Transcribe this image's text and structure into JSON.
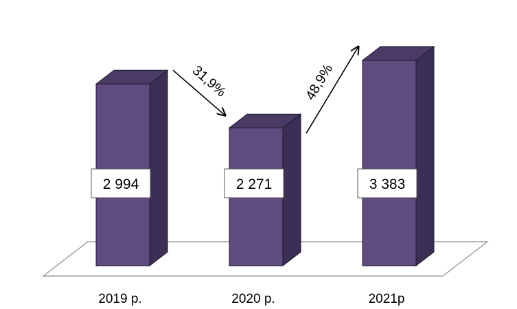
{
  "chart_data": {
    "type": "bar",
    "categories": [
      "2019 р.",
      "2020 р.",
      "2021р"
    ],
    "values": [
      2994,
      2271,
      3383
    ],
    "value_labels": [
      "2 994",
      "2 271",
      "3 383"
    ],
    "ylim": [
      0,
      3800
    ],
    "title": "",
    "xlabel": "",
    "ylabel": "",
    "grid": false,
    "three_d": true,
    "colors": {
      "front": "#5f4b7e",
      "side": "#3c2f55",
      "top": "#4a3b66",
      "outline": "#1f1a2c",
      "floor": "#ffffff"
    },
    "annotations": [
      {
        "text": "31,9%",
        "from": "2019 р.",
        "to": "2020 р.",
        "direction": "down"
      },
      {
        "text": "48,9%",
        "from": "2020 р.",
        "to": "2021р",
        "direction": "up"
      }
    ]
  }
}
